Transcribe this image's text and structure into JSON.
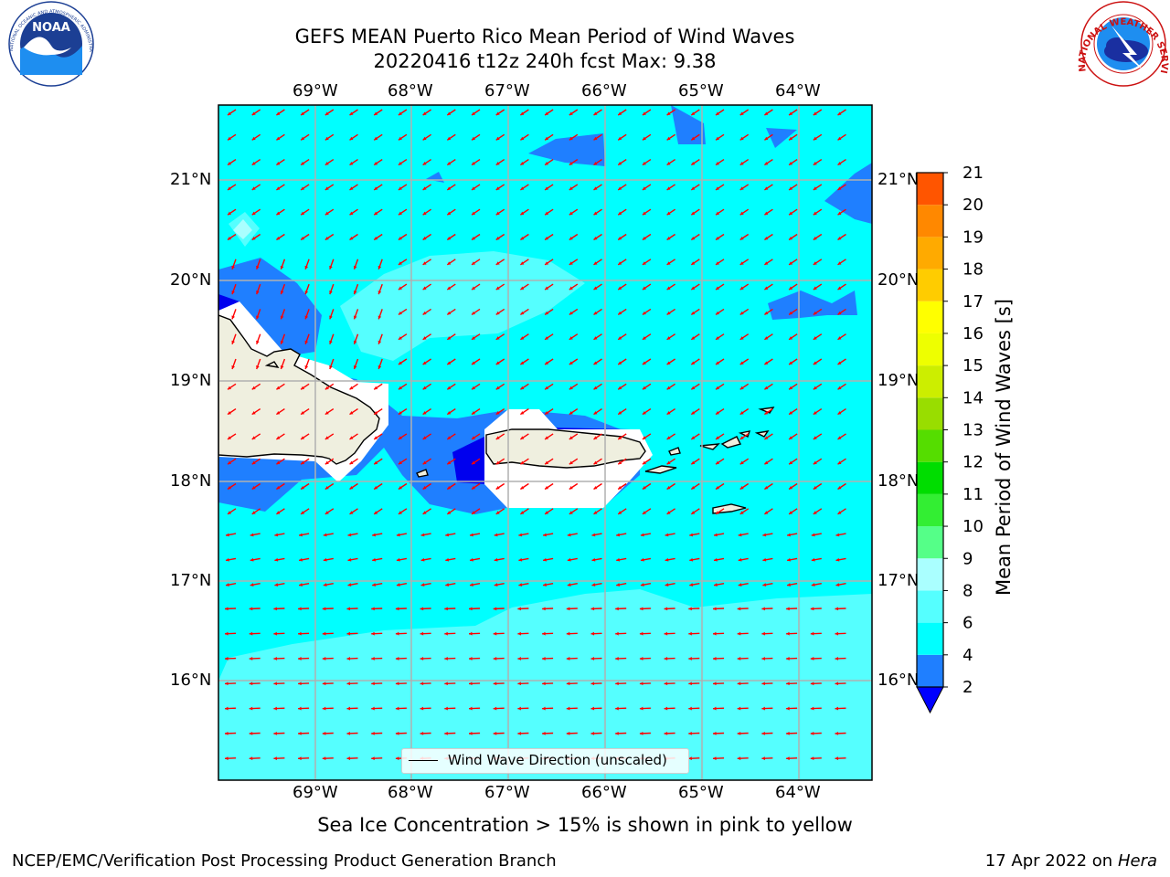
{
  "title": {
    "line1": "GEFS MEAN Puerto Rico Mean Period of Wind Waves",
    "line2": "20220416 t12z 240h fcst   Max: 9.38"
  },
  "map": {
    "lon_ticks": [
      "69°W",
      "68°W",
      "67°W",
      "66°W",
      "65°W",
      "64°W"
    ],
    "lat_ticks": [
      "21°N",
      "20°N",
      "19°N",
      "18°N",
      "17°N",
      "16°N"
    ],
    "background_color": "#00ffff",
    "land_color": "#efefdf"
  },
  "legend": {
    "label": "Wind Wave Direction (unscaled)"
  },
  "colorbar": {
    "label": "Mean Period of Wind Waves [s]",
    "ticks": [
      "2",
      "4",
      "6",
      "8",
      "9",
      "10",
      "11",
      "12",
      "13",
      "14",
      "15",
      "16",
      "17",
      "18",
      "19",
      "20",
      "21"
    ],
    "colors": [
      "#1f7fff",
      "#00ffff",
      "#55ffff",
      "#aaffff",
      "#55ff88",
      "#33ee33",
      "#00dd00",
      "#55dd00",
      "#99dd00",
      "#ccee00",
      "#eeff00",
      "#ffff00",
      "#ffcc00",
      "#ffaa00",
      "#ff8800",
      "#ff5500",
      "#ff2200",
      "#ff0000"
    ],
    "under_color": "#0000ff"
  },
  "note": "Sea Ice Concentration > 15% is shown in pink to yellow",
  "footer": {
    "left": "NCEP/EMC/Verification Post Processing Product Generation Branch",
    "date": "17 Apr 2022 on ",
    "host": "Hera"
  },
  "logos": {
    "noaa": "NOAA",
    "noaa_ring": "NATIONAL OCEANIC AND ATMOSPHERIC ADMINISTRATION · U.S. DEPARTMENT OF COMMERCE",
    "nws_ring": "NATIONAL WEATHER SERVICE"
  }
}
